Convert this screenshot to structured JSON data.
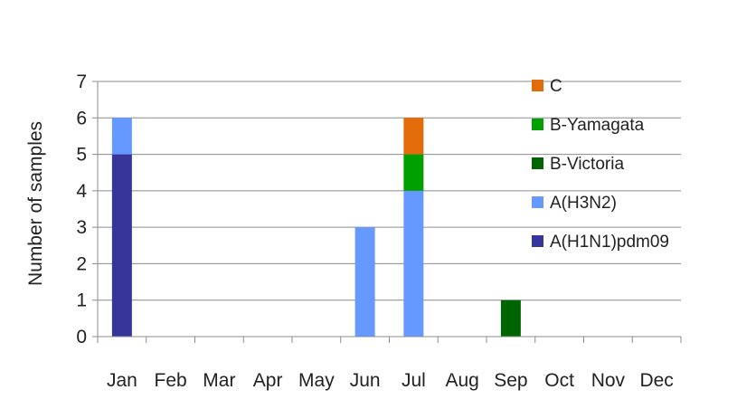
{
  "chart_data": {
    "type": "bar",
    "stacked": true,
    "ylabel": "Number of samples",
    "ylim": [
      0,
      7
    ],
    "yticks": [
      "0",
      "1",
      "2",
      "3",
      "4",
      "5",
      "6",
      "7"
    ],
    "grid": true,
    "legend_position": "right",
    "categories": [
      "Jan",
      "Feb",
      "Mar",
      "Apr",
      "May",
      "Jun",
      "Jul",
      "Aug",
      "Sep",
      "Oct",
      "Nov",
      "Dec"
    ],
    "series": [
      {
        "name": "A(H1N1)pdm09",
        "color": "#35359a",
        "values": [
          5,
          0,
          0,
          0,
          0,
          0,
          0,
          0,
          0,
          0,
          0,
          0
        ]
      },
      {
        "name": "A(H3N2)",
        "color": "#6699ff",
        "values": [
          1,
          0,
          0,
          0,
          0,
          3,
          4,
          0,
          0,
          0,
          0,
          0
        ]
      },
      {
        "name": "B-Victoria",
        "color": "#006400",
        "values": [
          0,
          0,
          0,
          0,
          0,
          0,
          0,
          0,
          1,
          0,
          0,
          0
        ]
      },
      {
        "name": "B-Yamagata",
        "color": "#00a000",
        "values": [
          0,
          0,
          0,
          0,
          0,
          0,
          1,
          0,
          0,
          0,
          0,
          0
        ]
      },
      {
        "name": "C",
        "color": "#e36c0a",
        "values": [
          0,
          0,
          0,
          0,
          0,
          0,
          1,
          0,
          0,
          0,
          0,
          0
        ]
      }
    ]
  }
}
